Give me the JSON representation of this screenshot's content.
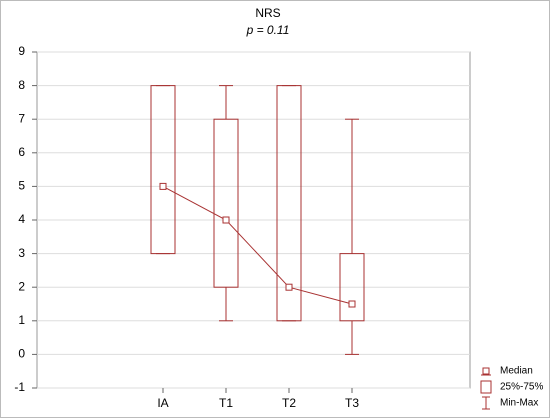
{
  "chart_data": {
    "type": "box",
    "title": "NRS",
    "subtitle": "p = 0.11",
    "categories": [
      "IA",
      "T1",
      "T2",
      "T3"
    ],
    "min": [
      3,
      1,
      1,
      0
    ],
    "q1": [
      3,
      2,
      1,
      1
    ],
    "median": [
      5,
      4,
      2,
      1.5
    ],
    "q3": [
      8,
      7,
      8,
      3
    ],
    "max": [
      8,
      8,
      8,
      7
    ],
    "color": "#a83232",
    "ylim": [
      -1,
      9
    ],
    "yticks": [
      -1,
      0,
      1,
      2,
      3,
      4,
      5,
      6,
      7,
      8,
      9
    ],
    "grid": true,
    "legend": [
      "Median",
      "25%-75%",
      "Min-Max"
    ]
  }
}
